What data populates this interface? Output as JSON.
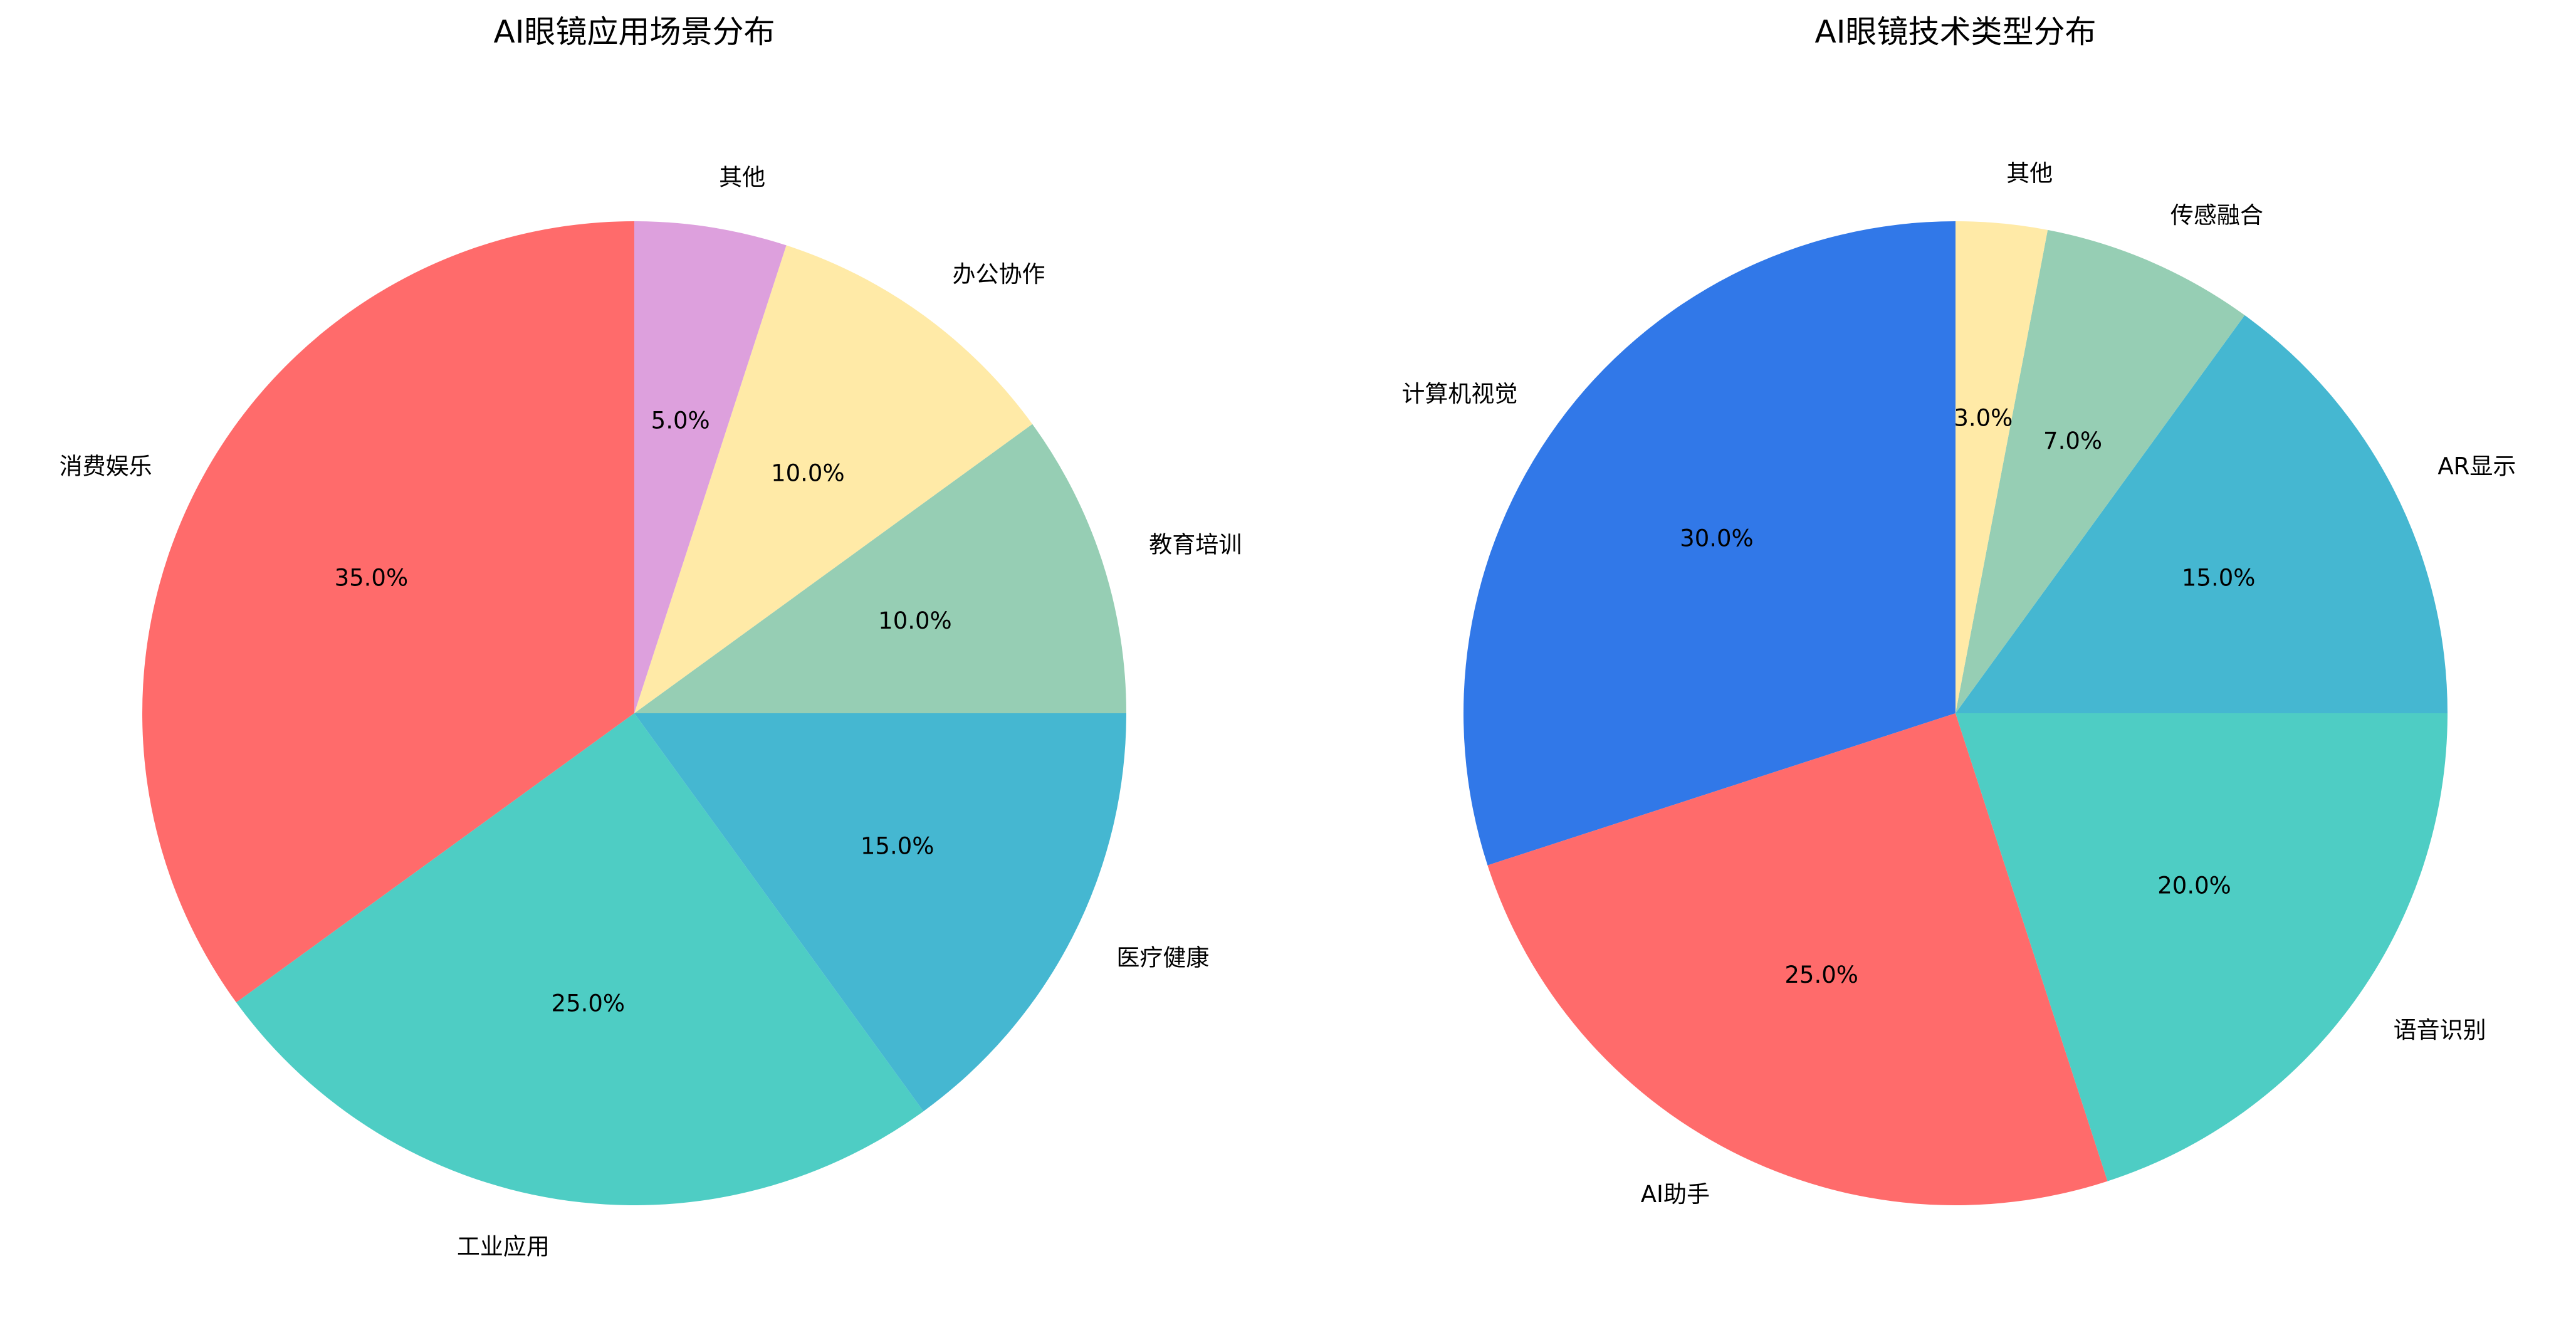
{
  "chart_data": [
    {
      "type": "pie",
      "title": "AI眼镜应用场景分布",
      "start_angle_deg": 90,
      "direction": "counterclockwise",
      "categories": [
        "消费娱乐",
        "工业应用",
        "医疗健康",
        "教育培训",
        "办公协作",
        "其他"
      ],
      "values": [
        35.0,
        25.0,
        15.0,
        10.0,
        10.0,
        5.0
      ],
      "value_labels": [
        "35.0%",
        "25.0%",
        "15.0%",
        "10.0%",
        "10.0%",
        "5.0%"
      ],
      "colors": [
        "#FF6B6B",
        "#4ECDC4",
        "#45B7D1",
        "#96CEB4",
        "#FFEAA7",
        "#DDA0DD"
      ]
    },
    {
      "type": "pie",
      "title": "AI眼镜技术类型分布",
      "start_angle_deg": 90,
      "direction": "counterclockwise",
      "categories": [
        "计算机视觉",
        "AI助手",
        "语音识别",
        "AR显示",
        "传感融合",
        "其他"
      ],
      "values": [
        30.0,
        25.0,
        20.0,
        15.0,
        7.0,
        3.0
      ],
      "value_labels": [
        "30.0%",
        "25.0%",
        "20.0%",
        "15.0%",
        "7.0%",
        "3.0%"
      ],
      "colors": [
        "#3178E8",
        "#FF6B6B",
        "#4ECDC4",
        "#45B7D1",
        "#96CEB4",
        "#FFEAA7"
      ]
    }
  ]
}
